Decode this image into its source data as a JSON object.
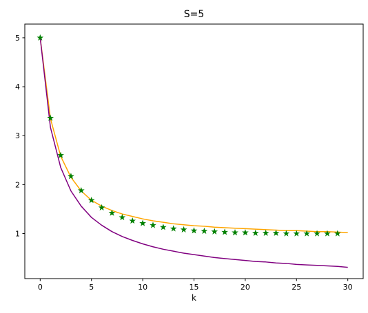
{
  "chart_data": {
    "type": "line",
    "title": "S=5",
    "xlabel": "k",
    "ylabel": "",
    "xlim": [
      -1.5,
      31.5
    ],
    "ylim": [
      0.08,
      5.28
    ],
    "xticks": [
      0,
      5,
      10,
      15,
      20,
      25,
      30
    ],
    "yticks": [
      1,
      2,
      3,
      4,
      5
    ],
    "grid": false,
    "legend": "none",
    "series": [
      {
        "kind": "line",
        "color": "#ffa500",
        "x": [
          0,
          1,
          2,
          3,
          4,
          5,
          6,
          7,
          8,
          9,
          10,
          11,
          12,
          13,
          14,
          15,
          16,
          17,
          18,
          19,
          20,
          21,
          22,
          23,
          24,
          25,
          26,
          27,
          28,
          29,
          30
        ],
        "y": [
          5.0,
          3.35,
          2.58,
          2.15,
          1.87,
          1.68,
          1.56,
          1.47,
          1.4,
          1.35,
          1.3,
          1.26,
          1.23,
          1.2,
          1.18,
          1.16,
          1.15,
          1.13,
          1.12,
          1.11,
          1.1,
          1.09,
          1.08,
          1.07,
          1.06,
          1.06,
          1.05,
          1.04,
          1.04,
          1.03,
          1.02
        ]
      },
      {
        "kind": "line",
        "color": "#800080",
        "x": [
          0,
          1,
          2,
          3,
          4,
          5,
          6,
          7,
          8,
          9,
          10,
          11,
          12,
          13,
          14,
          15,
          16,
          17,
          18,
          19,
          20,
          21,
          22,
          23,
          24,
          25,
          26,
          27,
          28,
          29,
          30
        ],
        "y": [
          5.0,
          3.17,
          2.35,
          1.87,
          1.56,
          1.33,
          1.17,
          1.04,
          0.94,
          0.86,
          0.79,
          0.73,
          0.68,
          0.64,
          0.6,
          0.57,
          0.54,
          0.51,
          0.49,
          0.47,
          0.45,
          0.43,
          0.42,
          0.4,
          0.39,
          0.37,
          0.36,
          0.35,
          0.34,
          0.33,
          0.31
        ]
      },
      {
        "kind": "scatter",
        "marker": "star",
        "color": "#008000",
        "x": [
          0,
          1,
          2,
          3,
          4,
          5,
          6,
          7,
          8,
          9,
          10,
          11,
          12,
          13,
          14,
          15,
          16,
          17,
          18,
          19,
          20,
          21,
          22,
          23,
          24,
          25,
          26,
          27,
          28,
          29
        ],
        "y": [
          5.0,
          3.36,
          2.6,
          2.17,
          1.88,
          1.68,
          1.53,
          1.42,
          1.33,
          1.26,
          1.21,
          1.17,
          1.13,
          1.1,
          1.08,
          1.06,
          1.05,
          1.04,
          1.03,
          1.02,
          1.02,
          1.01,
          1.01,
          1.01,
          1.0,
          1.0,
          1.0,
          1.0,
          1.0,
          1.0
        ]
      }
    ]
  }
}
